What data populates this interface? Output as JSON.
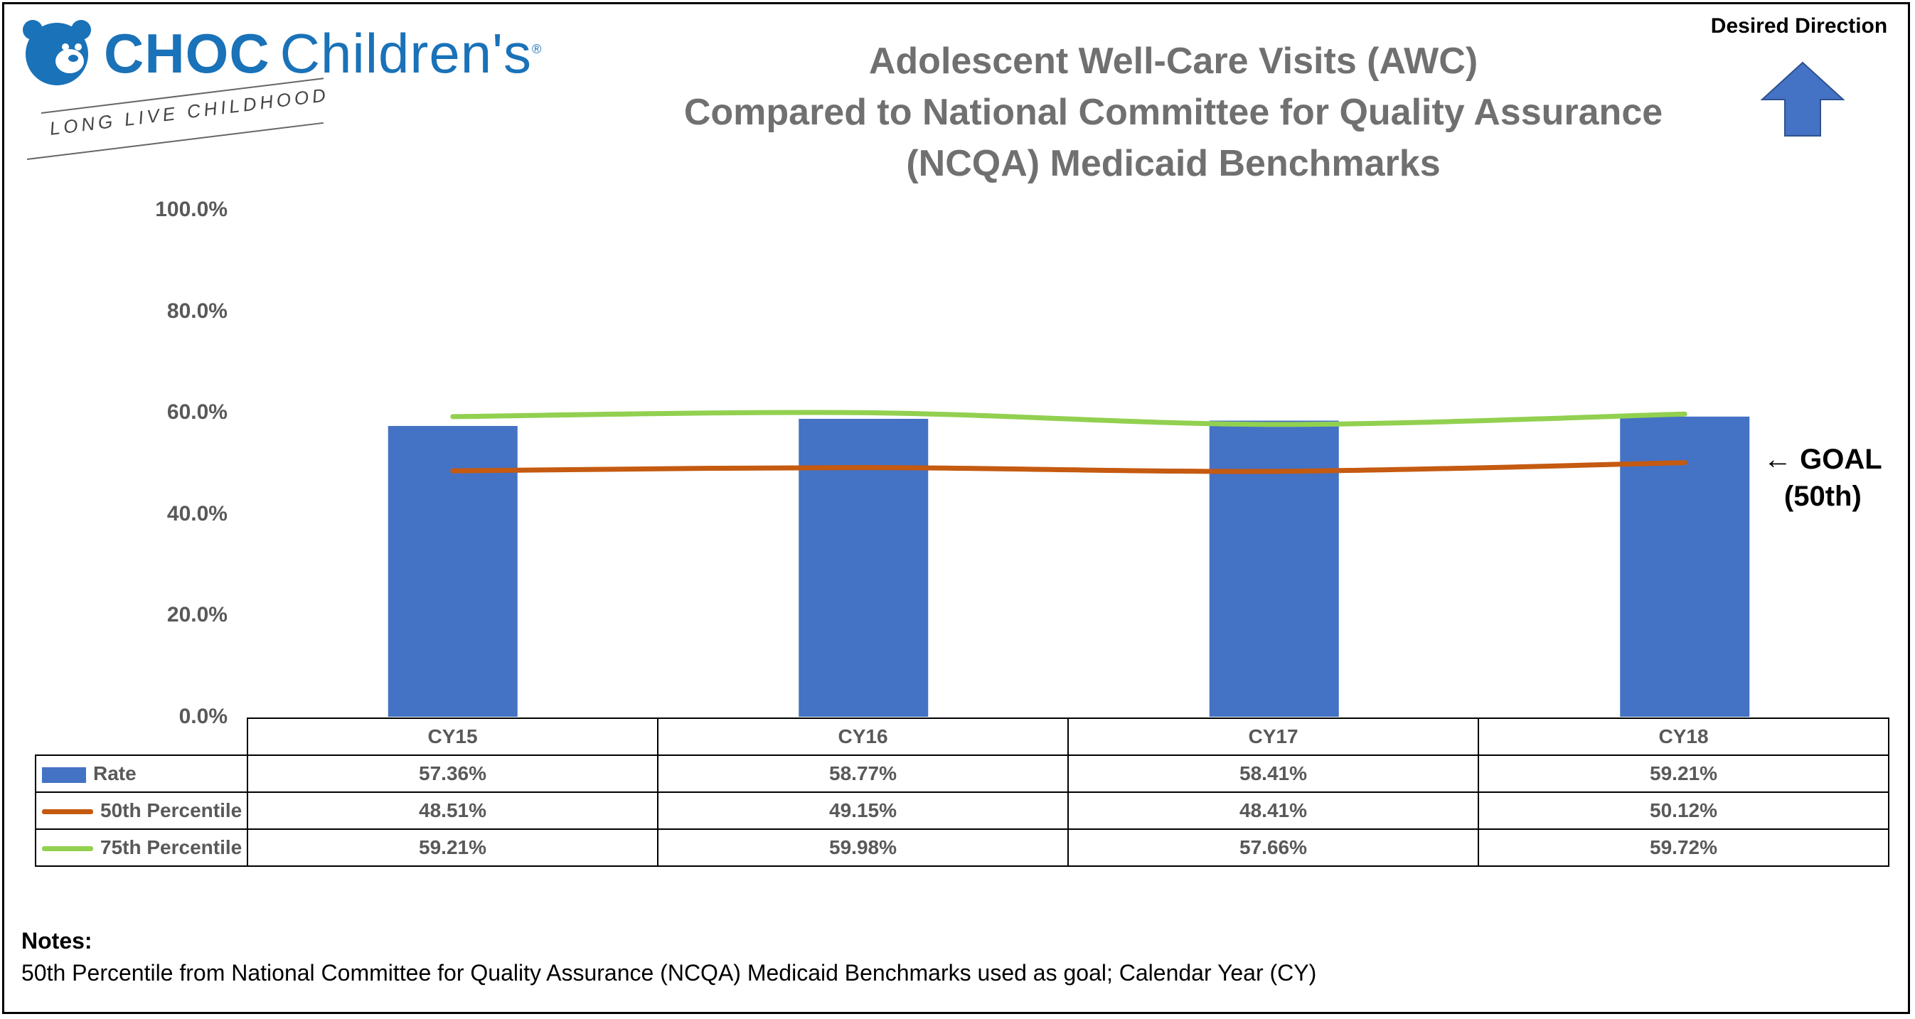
{
  "logo": {
    "brand": "CHOC",
    "name": "Children's",
    "registered_mark": "®",
    "tagline": "LONG LIVE CHILDHOOD"
  },
  "desired_direction": {
    "label": "Desired Direction",
    "icon": "arrow-up-icon",
    "color": "#4472c4"
  },
  "goal_annotation": {
    "line1": "← GOAL",
    "line2": "(50th)"
  },
  "chart_data": {
    "type": "bar",
    "title": [
      "Adolescent Well-Care Visits (AWC)",
      "Compared to National Committee for Quality Assurance",
      "(NCQA) Medicaid Benchmarks"
    ],
    "categories": [
      "CY15",
      "CY16",
      "CY17",
      "CY18"
    ],
    "ylim": [
      0,
      100
    ],
    "yticks": [
      "100.0%",
      "80.0%",
      "60.0%",
      "40.0%",
      "20.0%",
      "0.0%"
    ],
    "series": [
      {
        "name": "Rate",
        "kind": "bar",
        "color": "#4472c4",
        "values": [
          57.36,
          58.77,
          58.41,
          59.21
        ],
        "labels": [
          "57.36%",
          "58.77%",
          "58.41%",
          "59.21%"
        ]
      },
      {
        "name": "50th Percentile",
        "kind": "line",
        "color": "#c55a11",
        "values": [
          48.51,
          49.15,
          48.41,
          50.12
        ],
        "labels": [
          "48.51%",
          "49.15%",
          "48.41%",
          "50.12%"
        ]
      },
      {
        "name": "75th Percentile",
        "kind": "line",
        "color": "#92d050",
        "values": [
          59.21,
          59.98,
          57.66,
          59.72
        ],
        "labels": [
          "59.21%",
          "59.98%",
          "57.66%",
          "59.72%"
        ]
      }
    ]
  },
  "notes": {
    "heading": "Notes:",
    "text": "50th Percentile from National Committee for Quality Assurance (NCQA) Medicaid Benchmarks used as goal; Calendar Year (CY)"
  }
}
